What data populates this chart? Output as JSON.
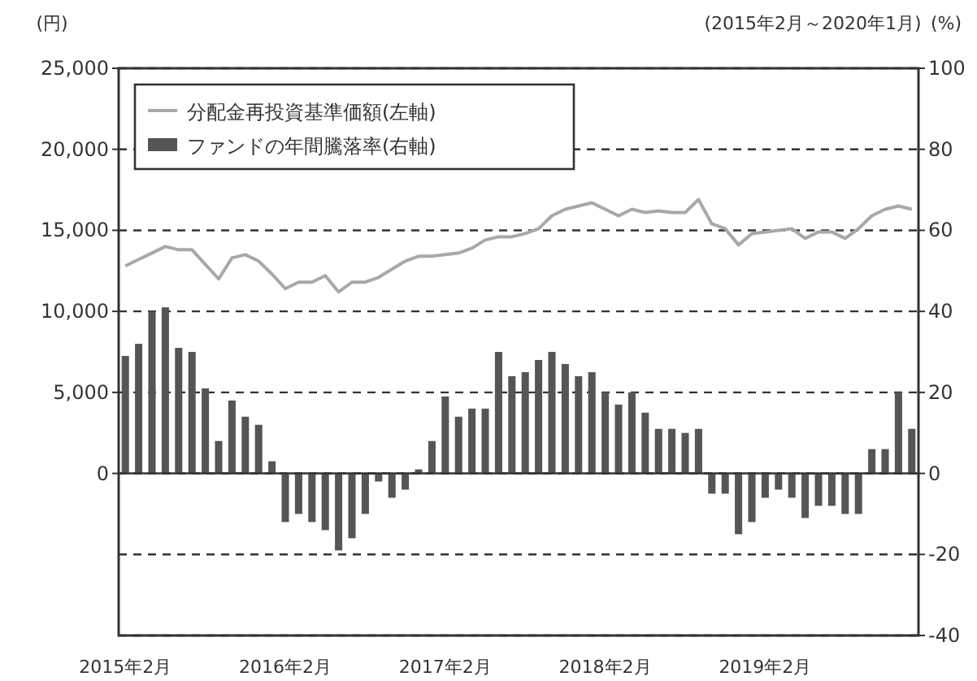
{
  "chart_data": {
    "type": "bar",
    "ylabel": "(円)",
    "y2label": "(%)",
    "annotations": [
      "(2015年2月～2020年1月)"
    ],
    "categories": [
      "2015年2月",
      null,
      null,
      null,
      null,
      null,
      null,
      null,
      null,
      null,
      null,
      null,
      "2016年2月",
      null,
      null,
      null,
      null,
      null,
      null,
      null,
      null,
      null,
      null,
      null,
      "2017年2月",
      null,
      null,
      null,
      null,
      null,
      null,
      null,
      null,
      null,
      null,
      null,
      "2018年2月",
      null,
      null,
      null,
      null,
      null,
      null,
      null,
      null,
      null,
      null,
      null,
      "2019年2月",
      null,
      null,
      null,
      null,
      null,
      null,
      null,
      null,
      null,
      null,
      null
    ],
    "series": [
      {
        "name": "分配金再投資基準価額(左軸)",
        "type": "line",
        "axis": "y",
        "color": "#a8a8a8",
        "values": [
          12800,
          13200,
          13600,
          14000,
          13800,
          13800,
          12900,
          12000,
          13300,
          13500,
          13100,
          12300,
          11400,
          11800,
          11800,
          12200,
          11200,
          11800,
          11800,
          12100,
          12600,
          13100,
          13400,
          13400,
          13500,
          13600,
          13900,
          14400,
          14600,
          14600,
          14800,
          15100,
          15900,
          16300,
          16500,
          16700,
          16300,
          15900,
          16300,
          16100,
          16200,
          16100,
          16100,
          16900,
          15400,
          15100,
          14100,
          14800,
          14900,
          15000,
          15100,
          14500,
          14900,
          14900,
          14500,
          15100,
          15900,
          16300,
          16500,
          16300
        ]
      },
      {
        "name": "ファンドの年間騰落率(右軸)",
        "axis": "y2",
        "color": "#555555",
        "values": [
          29,
          32,
          40,
          41,
          31,
          30,
          21,
          8,
          18,
          14,
          12,
          3,
          -12,
          -10,
          -12,
          -14,
          -19,
          -16,
          -10,
          -2,
          -6,
          -4,
          1,
          8,
          19,
          14,
          16,
          16,
          30,
          24,
          25,
          28,
          30,
          27,
          24,
          25,
          20,
          17,
          20,
          15,
          11,
          11,
          10,
          11,
          -5,
          -5,
          -15,
          -12,
          -6,
          -4,
          -6,
          -11,
          -8,
          -8,
          -10,
          -10,
          6,
          6,
          20,
          11
        ]
      }
    ],
    "ylim": [
      -10000,
      25000
    ],
    "yticks": [
      {
        "value": 0,
        "label": "0"
      },
      {
        "value": 5000,
        "label": "5,000"
      },
      {
        "value": 10000,
        "label": "10,000"
      },
      {
        "value": 15000,
        "label": "15,000"
      },
      {
        "value": 20000,
        "label": "20,000"
      },
      {
        "value": 25000,
        "label": "25,000"
      }
    ],
    "y2lim": [
      -40,
      100
    ],
    "y2ticks": [
      -40,
      -20,
      0,
      20,
      40,
      60,
      80,
      100
    ],
    "grid": "y",
    "legend": "top left"
  }
}
